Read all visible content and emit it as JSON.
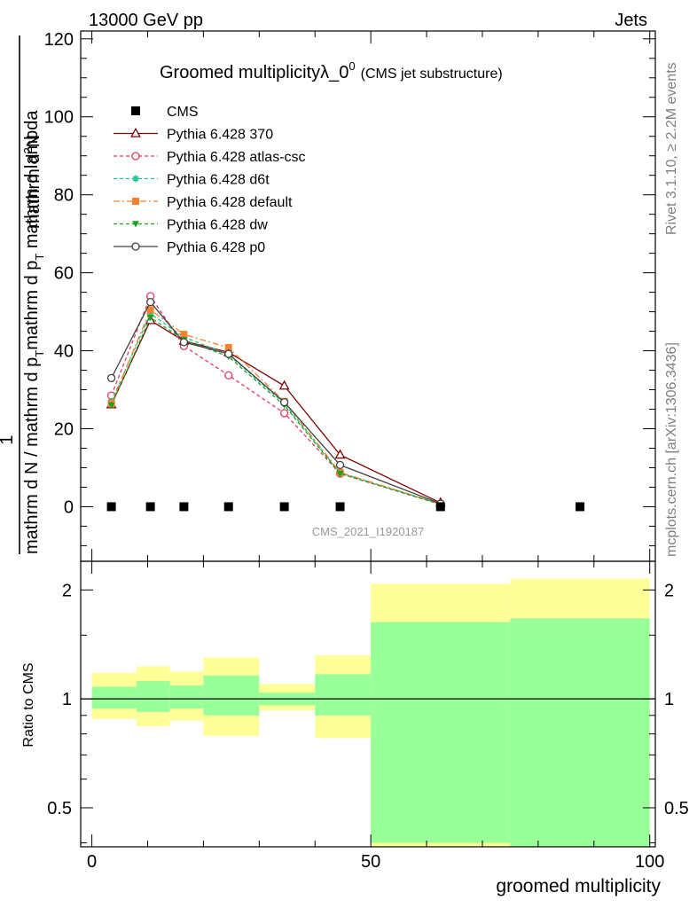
{
  "header": {
    "left": "13000 GeV pp",
    "right": "Jets"
  },
  "side_labels": {
    "rivet": "Rivet 3.1.10, ≥ 2.2M events",
    "mcplots": "mcplots.cern.ch [arXiv:1306.3436]"
  },
  "chart_data": [
    {
      "type": "line",
      "title": "Groomed multiplicityλ_0",
      "title_superscript": "0",
      "subtitle": "(CMS jet substructure)",
      "watermark": "CMS_2021_I1920187",
      "ylabel": {
        "line1": "mathrm d",
        "line1_sup": "2",
        "line1_end": "N",
        "prefix": "1",
        "line2a": "mathrm d N / mathrm d p",
        "line2a_sub": "T",
        "line2b": "mathrm d p",
        "line2b_sub": "T",
        "line2c": " mathrm d lambda"
      },
      "xlim": [
        -2,
        101
      ],
      "ylim": [
        -14,
        122
      ],
      "yticks": [
        0,
        20,
        40,
        60,
        80,
        100,
        120
      ],
      "legend_position": "top-left",
      "series": [
        {
          "name": "CMS",
          "color": "#000000",
          "marker": "square-filled",
          "dash": "none",
          "x": [
            3.5,
            10.5,
            16.5,
            24.5,
            34.5,
            44.5,
            62.5,
            87.5
          ],
          "y": [
            0,
            0,
            0,
            0,
            0,
            0,
            0,
            0
          ]
        },
        {
          "name": "Pythia 6.428 370",
          "color": "#800000",
          "marker": "triangle-open",
          "dash": "none",
          "x": [
            3.5,
            10.5,
            16.5,
            24.5,
            34.5,
            44.5,
            62.5
          ],
          "y": [
            26.2,
            47.8,
            42.5,
            39.6,
            31.0,
            13.3,
            1.0
          ]
        },
        {
          "name": "Pythia 6.428 atlas-csc",
          "color": "#e8385d",
          "marker": "circle-open",
          "dash": "4,3",
          "x": [
            3.5,
            10.5,
            16.5,
            24.5,
            34.5,
            44.5,
            62.5
          ],
          "y": [
            28.5,
            54.0,
            41.2,
            33.7,
            24.0,
            8.5,
            0.6
          ]
        },
        {
          "name": "Pythia 6.428 d6t",
          "color": "#19c49a",
          "marker": "star",
          "dash": "4,3",
          "x": [
            3.5,
            10.5,
            16.5,
            24.5,
            34.5,
            44.5,
            62.5
          ],
          "y": [
            27.0,
            49.5,
            43.5,
            39.0,
            26.5,
            8.7,
            0.7
          ]
        },
        {
          "name": "Pythia 6.428 default",
          "color": "#f5822e",
          "marker": "square-filled",
          "dash": "7,3,2,3",
          "x": [
            3.5,
            10.5,
            16.5,
            24.5,
            34.5,
            44.5,
            62.5
          ],
          "y": [
            26.5,
            50.5,
            44.2,
            40.8,
            27.0,
            8.8,
            0.7
          ]
        },
        {
          "name": "Pythia 6.428 dw",
          "color": "#1aa31a",
          "marker": "triangle-down-filled",
          "dash": "4,3",
          "x": [
            3.5,
            10.5,
            16.5,
            24.5,
            34.5,
            44.5,
            62.5
          ],
          "y": [
            26.0,
            48.5,
            42.8,
            38.5,
            26.0,
            8.5,
            0.6
          ]
        },
        {
          "name": "Pythia 6.428 p0",
          "color": "#404040",
          "marker": "circle-open",
          "dash": "none",
          "x": [
            3.5,
            10.5,
            16.5,
            24.5,
            34.5,
            44.5,
            62.5
          ],
          "y": [
            33.0,
            52.5,
            42.2,
            39.2,
            26.8,
            10.7,
            0.8
          ]
        }
      ]
    },
    {
      "type": "area",
      "ylabel": "Ratio to CMS",
      "xlabel": "groomed multiplicity",
      "scale": "log",
      "ylim": [
        0.39,
        2.4
      ],
      "yticks": [
        0.5,
        1,
        2
      ],
      "xlim": [
        -2,
        101
      ],
      "xticks": [
        0,
        50,
        100
      ],
      "reference_line": 1,
      "bins": [
        {
          "lo": 0,
          "hi": 8,
          "outer": [
            0.88,
            1.18
          ],
          "inner": [
            0.94,
            1.08
          ]
        },
        {
          "lo": 8,
          "hi": 14,
          "outer": [
            0.84,
            1.23
          ],
          "inner": [
            0.92,
            1.12
          ]
        },
        {
          "lo": 14,
          "hi": 20,
          "outer": [
            0.87,
            1.19
          ],
          "inner": [
            0.94,
            1.09
          ]
        },
        {
          "lo": 20,
          "hi": 30,
          "outer": [
            0.79,
            1.3
          ],
          "inner": [
            0.9,
            1.16
          ]
        },
        {
          "lo": 30,
          "hi": 40,
          "outer": [
            0.93,
            1.1
          ],
          "inner": [
            0.96,
            1.04
          ]
        },
        {
          "lo": 40,
          "hi": 50,
          "outer": [
            0.78,
            1.32
          ],
          "inner": [
            0.9,
            1.17
          ]
        },
        {
          "lo": 50,
          "hi": 75,
          "outer": [
            0.36,
            2.08
          ],
          "inner": [
            0.4,
            1.63
          ]
        },
        {
          "lo": 75,
          "hi": 100,
          "outer": [
            0.36,
            2.15
          ],
          "inner": [
            0.36,
            1.67
          ]
        }
      ],
      "colors": {
        "outer": "#ffff99",
        "inner": "#99ff99"
      }
    }
  ]
}
